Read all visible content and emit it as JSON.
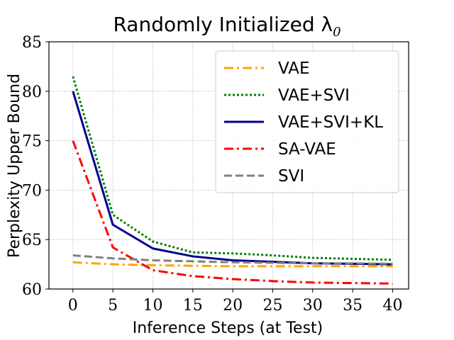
{
  "chart_data": {
    "type": "line",
    "title": "Randomly Initialized λ",
    "title_subscript": "0",
    "xlabel": "Inference Steps (at Test)",
    "ylabel": "Perplexity Upper Bound",
    "xlim": [
      -3,
      42
    ],
    "ylim": [
      60,
      85
    ],
    "x": [
      0,
      5,
      10,
      15,
      20,
      25,
      30,
      35,
      40
    ],
    "xticks": [
      0,
      5,
      10,
      15,
      20,
      25,
      30,
      35,
      40
    ],
    "yticks": [
      60,
      65,
      70,
      75,
      80,
      85
    ],
    "grid": true,
    "legend_position": "top-right",
    "series": [
      {
        "name": "VAE",
        "color": "#ffa500",
        "dash": "dashdot",
        "values": [
          62.7,
          62.5,
          62.4,
          62.35,
          62.3,
          62.3,
          62.3,
          62.3,
          62.3
        ]
      },
      {
        "name": "VAE+SVI",
        "color": "#008000",
        "dash": "dotted",
        "values": [
          81.5,
          67.5,
          64.8,
          63.7,
          63.6,
          63.4,
          63.15,
          63.05,
          62.95
        ]
      },
      {
        "name": "VAE+SVI+KL",
        "color": "#00008b",
        "dash": "solid",
        "values": [
          80.0,
          66.5,
          64.1,
          63.3,
          62.9,
          62.75,
          62.6,
          62.55,
          62.5
        ]
      },
      {
        "name": "SA-VAE",
        "color": "#ff0000",
        "dash": "dashdot",
        "values": [
          75.0,
          64.2,
          61.9,
          61.3,
          61.0,
          60.8,
          60.65,
          60.6,
          60.55
        ]
      },
      {
        "name": "SVI",
        "color": "#808080",
        "dash": "dashed",
        "values": [
          63.4,
          63.1,
          62.9,
          62.8,
          62.7,
          62.65,
          62.6,
          62.6,
          62.55
        ]
      }
    ]
  }
}
